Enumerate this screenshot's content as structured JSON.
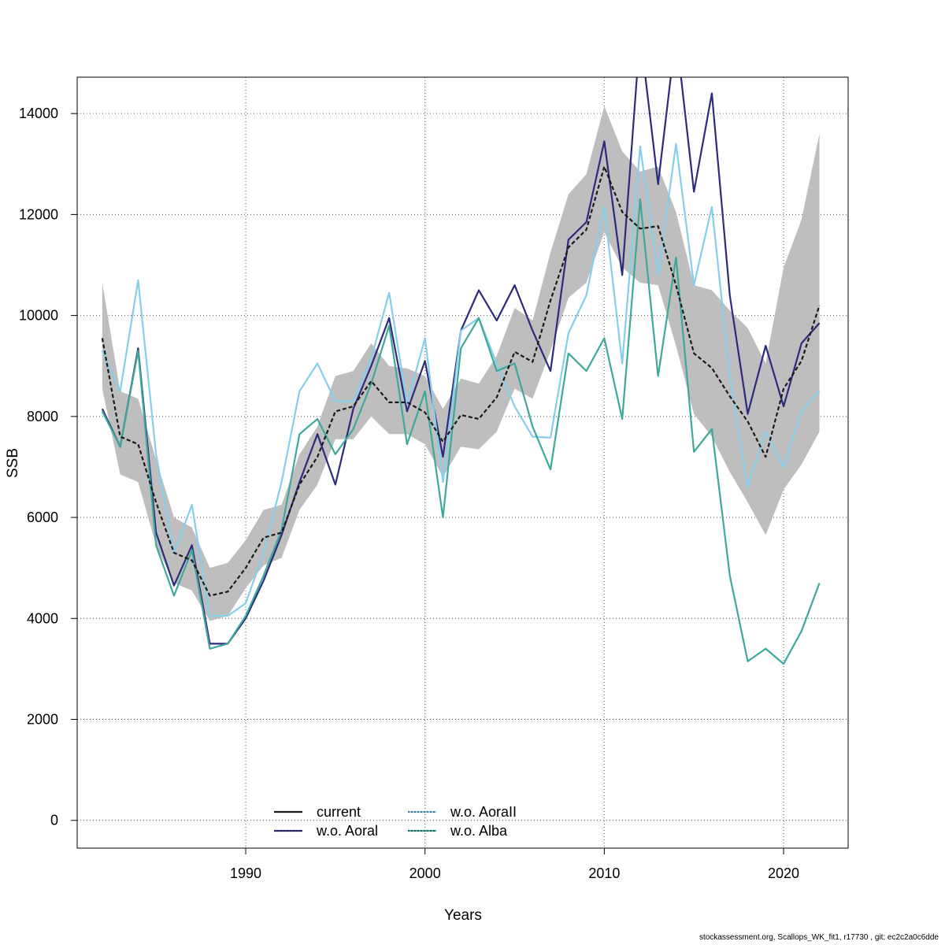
{
  "chart_data": {
    "type": "line",
    "xlabel": "Years",
    "ylabel": "SSB",
    "xlim": [
      1980.6,
      2023.6
    ],
    "ylim": [
      -550,
      14720
    ],
    "xticks": [
      1990,
      2000,
      2010,
      2020
    ],
    "yticks": [
      0,
      2000,
      4000,
      6000,
      8000,
      10000,
      12000,
      14000
    ],
    "grid": true,
    "legend_position": "bottom-center",
    "x": [
      1982,
      1983,
      1984,
      1985,
      1986,
      1987,
      1988,
      1989,
      1990,
      1991,
      1992,
      1993,
      1994,
      1995,
      1996,
      1997,
      1998,
      1999,
      2000,
      2001,
      2002,
      2003,
      2004,
      2005,
      2006,
      2007,
      2008,
      2009,
      2010,
      2011,
      2012,
      2013,
      2014,
      2015,
      2016,
      2017,
      2018,
      2019,
      2020,
      2021,
      2022
    ],
    "confidence_band": {
      "color": "#bebebe",
      "lower": [
        8550,
        6850,
        6700,
        5450,
        4700,
        4550,
        3950,
        4050,
        4600,
        5050,
        5200,
        6150,
        6650,
        7550,
        7550,
        8000,
        7650,
        7650,
        7450,
        6800,
        7400,
        7350,
        7700,
        8550,
        8350,
        9300,
        10350,
        10650,
        11650,
        10950,
        10650,
        10600,
        9400,
        8050,
        7600,
        6900,
        6300,
        5650,
        6550,
        7050,
        7700
      ],
      "upper": [
        10650,
        8500,
        8350,
        7150,
        6000,
        5800,
        5000,
        5100,
        5550,
        6150,
        6250,
        7250,
        7800,
        8800,
        8900,
        9450,
        9000,
        8950,
        8800,
        8150,
        8750,
        8650,
        9200,
        10150,
        9900,
        11250,
        12400,
        12800,
        14150,
        13250,
        12850,
        12950,
        12050,
        10600,
        10500,
        10100,
        9750,
        9050,
        10950,
        11900,
        13600
      ]
    },
    "series": [
      {
        "name": "current",
        "color": "#1a1a1a",
        "dashed": true,
        "values": [
          9550,
          7600,
          7450,
          6300,
          5300,
          5150,
          4450,
          4530,
          5000,
          5600,
          5700,
          6650,
          7200,
          8100,
          8200,
          8700,
          8280,
          8280,
          8080,
          7500,
          8030,
          7950,
          8380,
          9280,
          9080,
          10300,
          11350,
          11700,
          12950,
          12050,
          11720,
          11770,
          10600,
          9250,
          8960,
          8400,
          7900,
          7200,
          8550,
          9100,
          10200
        ]
      },
      {
        "name": "w.o. Aoral",
        "color": "#2e2a7e",
        "dashed": false,
        "values": [
          8150,
          7400,
          9350,
          5700,
          4650,
          5450,
          3500,
          3500,
          4000,
          4750,
          5650,
          6700,
          7650,
          6650,
          8150,
          9000,
          9950,
          8100,
          9100,
          7200,
          9700,
          10500,
          9900,
          10600,
          9700,
          8900,
          11500,
          11850,
          13450,
          10800,
          15600,
          12600,
          15600,
          12450,
          14400,
          10400,
          8050,
          9400,
          8200,
          9450,
          9850
        ]
      },
      {
        "name": "w.o. AoraII",
        "color": "#87ceeb",
        "dashed": false,
        "values": [
          9300,
          8500,
          10700,
          7250,
          5300,
          6250,
          4050,
          4050,
          4300,
          5300,
          6700,
          8500,
          9050,
          8300,
          8300,
          9150,
          10450,
          8250,
          9550,
          6700,
          9700,
          9950,
          9050,
          8200,
          7600,
          7580,
          9650,
          10400,
          12150,
          9050,
          13350,
          10800,
          13400,
          10600,
          12150,
          8800,
          6600,
          7700,
          7000,
          8100,
          8500
        ]
      },
      {
        "name": "w.o. Alba",
        "color": "#3fa89a",
        "dashed": false,
        "values": [
          8100,
          7400,
          9300,
          5450,
          4450,
          5350,
          3400,
          3500,
          4050,
          4850,
          5750,
          7650,
          7950,
          7250,
          7750,
          8650,
          9800,
          7450,
          8500,
          6000,
          9350,
          9950,
          8900,
          9050,
          7800,
          6950,
          9250,
          8900,
          9550,
          7950,
          12300,
          8800,
          11150,
          7300,
          7750,
          4850,
          3150,
          3400,
          3100,
          3750,
          4700
        ]
      }
    ]
  },
  "footer_text": "stockassessment.org, Scallops_WK_fit1, r17730 , git: ec2c2a0c6dde"
}
